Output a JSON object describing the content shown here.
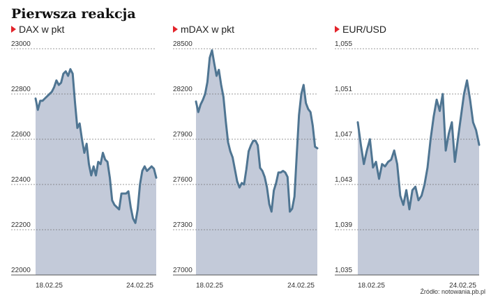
{
  "title": "Pierwsza reakcja",
  "source": "Źródło: notowania.pb.pl",
  "colors": {
    "line": "#4f7592",
    "area": "#c3cad9",
    "grid": "#777777",
    "marker": "#e3242b"
  },
  "chart_data": [
    {
      "type": "area",
      "title": "DAX w pkt",
      "x_labels": [
        "18.02.25",
        "24.02.25"
      ],
      "yticks": [
        "23000",
        "22800",
        "22600",
        "22400",
        "22200",
        "22000"
      ],
      "ylim": [
        22000,
        23000
      ],
      "y": [
        22780,
        22730,
        22770,
        22770,
        22780,
        22790,
        22800,
        22810,
        22830,
        22860,
        22840,
        22850,
        22890,
        22900,
        22880,
        22910,
        22890,
        22760,
        22650,
        22670,
        22600,
        22540,
        22580,
        22490,
        22440,
        22480,
        22440,
        22500,
        22490,
        22540,
        22510,
        22500,
        22430,
        22330,
        22310,
        22300,
        22290,
        22360,
        22360,
        22360,
        22370,
        22300,
        22250,
        22230,
        22290,
        22400,
        22460,
        22480,
        22460,
        22470,
        22480,
        22470,
        22430
      ]
    },
    {
      "type": "area",
      "title": "mDAX w pkt",
      "x_labels": [
        "18.02.25",
        "24.02.25"
      ],
      "yticks": [
        "28500",
        "28200",
        "27900",
        "27600",
        "27300",
        "27000"
      ],
      "ylim": [
        27000,
        28500
      ],
      "y": [
        28150,
        28080,
        28130,
        28160,
        28200,
        28280,
        28440,
        28490,
        28400,
        28320,
        28360,
        28260,
        28180,
        28020,
        27880,
        27820,
        27780,
        27700,
        27620,
        27580,
        27610,
        27600,
        27700,
        27820,
        27860,
        27890,
        27890,
        27860,
        27710,
        27690,
        27650,
        27580,
        27470,
        27420,
        27560,
        27610,
        27680,
        27680,
        27690,
        27680,
        27650,
        27420,
        27440,
        27520,
        27800,
        28060,
        28200,
        28260,
        28140,
        28100,
        28080,
        27990,
        27850,
        27840
      ]
    },
    {
      "type": "area",
      "title": "EUR/USD",
      "x_labels": [
        "18.02.25",
        "24.02.25"
      ],
      "yticks": [
        "1,055",
        "1,051",
        "1,047",
        "1,043",
        "1,039",
        "1,035"
      ],
      "ylim": [
        1.035,
        1.055
      ],
      "y": [
        1.0485,
        1.0465,
        1.0448,
        1.046,
        1.047,
        1.0445,
        1.045,
        1.0435,
        1.0448,
        1.0446,
        1.045,
        1.0452,
        1.046,
        1.0448,
        1.042,
        1.0412,
        1.0425,
        1.0408,
        1.0425,
        1.0428,
        1.0416,
        1.042,
        1.043,
        1.0445,
        1.047,
        1.049,
        1.0505,
        1.0495,
        1.051,
        1.046,
        1.0475,
        1.0485,
        1.045,
        1.047,
        1.049,
        1.051,
        1.0522,
        1.0505,
        1.0485,
        1.0478,
        1.0465
      ]
    }
  ]
}
